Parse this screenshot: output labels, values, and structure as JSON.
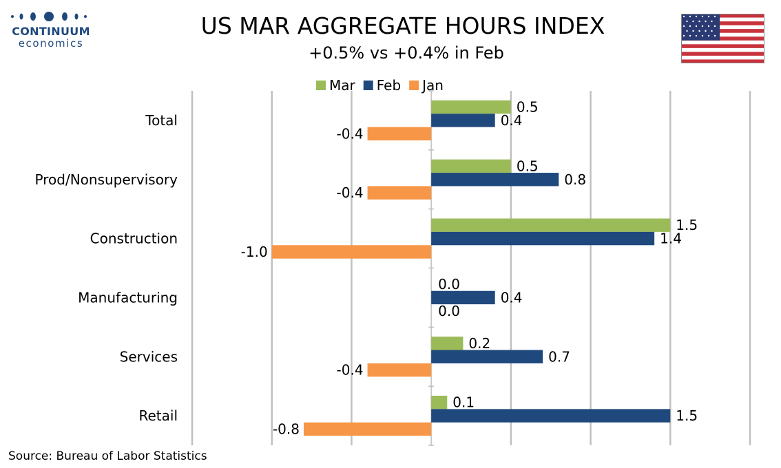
{
  "header": {
    "logo_name": "CONTINUUM",
    "logo_sub": "economics",
    "title": "US MAR AGGREGATE HOURS INDEX",
    "subtitle": "+0.5% vs +0.4% in Feb"
  },
  "footer": {
    "source": "Source: Bureau of Labor Statistics"
  },
  "chart_data": {
    "type": "bar",
    "orientation": "horizontal",
    "categories": [
      "Total",
      "Prod/Nonsupervisory",
      "Construction",
      "Manufacturing",
      "Services",
      "Retail"
    ],
    "series": [
      {
        "name": "Mar",
        "color": "#9bbb59",
        "values": [
          0.5,
          0.5,
          1.5,
          0.0,
          0.2,
          0.1
        ],
        "labels": [
          "0.5",
          "0.5",
          "1.5",
          "0.0",
          "0.2",
          "0.1"
        ]
      },
      {
        "name": "Feb",
        "color": "#1f497d",
        "values": [
          0.4,
          0.8,
          1.4,
          0.4,
          0.7,
          1.5
        ],
        "labels": [
          "0.4",
          "0.8",
          "1.4",
          "0.4",
          "0.7",
          "1.5"
        ]
      },
      {
        "name": "Jan",
        "color": "#f79646",
        "values": [
          -0.4,
          -0.4,
          -1.0,
          0.0,
          -0.4,
          -0.8
        ],
        "labels": [
          "-0.4",
          "-0.4",
          "-1.0",
          "0.0",
          "-0.4",
          "-0.8"
        ]
      }
    ],
    "xlim": [
      -1.5,
      2.0
    ],
    "x_gridlines": [
      -1.5,
      -1.0,
      -0.5,
      0.5,
      1.0,
      1.5,
      2.0
    ],
    "grid": true,
    "tick_labels_shown": false,
    "legend_position": "top-center"
  },
  "colors": {
    "brand_blue": "#1f497d",
    "grid": "#c0c0c0",
    "axis": "#bfbfbf"
  }
}
